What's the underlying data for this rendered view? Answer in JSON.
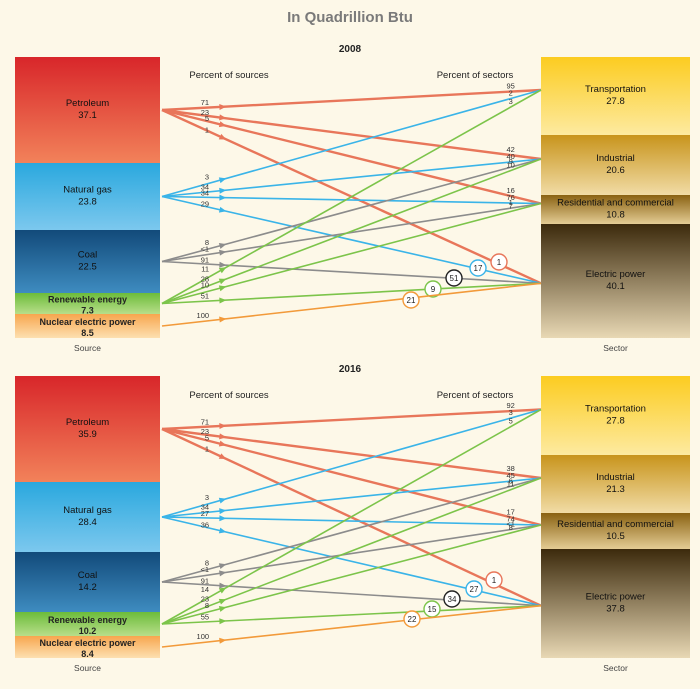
{
  "title": "In Quadrillion Btu",
  "labels": {
    "percent_of_sources": "Percent of sources",
    "percent_of_sectors": "Percent of sectors",
    "source_axis": "Source",
    "sector_axis": "Sector"
  },
  "colors": {
    "petroleum": "#e8765a",
    "natural_gas": "#3ab4e8",
    "coal": "#8c8c8c",
    "renewable": "#7cc44a",
    "nuclear": "#f29a3a"
  },
  "chart_data": [
    {
      "type": "sankey",
      "year": "2008",
      "sources": [
        {
          "key": "petroleum",
          "name": "Petroleum",
          "value": "37.1"
        },
        {
          "key": "natural_gas",
          "name": "Natural gas",
          "value": "23.8"
        },
        {
          "key": "coal",
          "name": "Coal",
          "value": "22.5"
        },
        {
          "key": "renewable",
          "name": "Renewable energy",
          "value": "7.3"
        },
        {
          "key": "nuclear",
          "name": "Nuclear electric power",
          "value": "8.5"
        }
      ],
      "sectors": [
        {
          "key": "transportation",
          "name": "Transportation",
          "value": "27.8"
        },
        {
          "key": "industrial",
          "name": "Industrial",
          "value": "20.6"
        },
        {
          "key": "residential",
          "name": "Residential and commercial",
          "value": "10.8"
        },
        {
          "key": "electric",
          "name": "Electric power",
          "value": "40.1"
        }
      ],
      "flows": [
        {
          "source": "petroleum",
          "target": "transportation",
          "pct_of_source": "71",
          "pct_of_sector": "95"
        },
        {
          "source": "petroleum",
          "target": "industrial",
          "pct_of_source": "23",
          "pct_of_sector": "42"
        },
        {
          "source": "petroleum",
          "target": "residential",
          "pct_of_source": "5",
          "pct_of_sector": "16"
        },
        {
          "source": "petroleum",
          "target": "electric",
          "pct_of_source": "1",
          "pct_of_sector": "1"
        },
        {
          "source": "natural_gas",
          "target": "transportation",
          "pct_of_source": "3",
          "pct_of_sector": "2"
        },
        {
          "source": "natural_gas",
          "target": "industrial",
          "pct_of_source": "34",
          "pct_of_sector": "40"
        },
        {
          "source": "natural_gas",
          "target": "residential",
          "pct_of_source": "34",
          "pct_of_sector": "76"
        },
        {
          "source": "natural_gas",
          "target": "electric",
          "pct_of_source": "29",
          "pct_of_sector": "17"
        },
        {
          "source": "coal",
          "target": "industrial",
          "pct_of_source": "8",
          "pct_of_sector": "9"
        },
        {
          "source": "coal",
          "target": "residential",
          "pct_of_source": "<1",
          "pct_of_sector": "1"
        },
        {
          "source": "coal",
          "target": "electric",
          "pct_of_source": "91",
          "pct_of_sector": "51"
        },
        {
          "source": "renewable",
          "target": "transportation",
          "pct_of_source": "11",
          "pct_of_sector": "3"
        },
        {
          "source": "renewable",
          "target": "industrial",
          "pct_of_source": "28",
          "pct_of_sector": "10"
        },
        {
          "source": "renewable",
          "target": "residential",
          "pct_of_source": "10",
          "pct_of_sector": "7"
        },
        {
          "source": "renewable",
          "target": "electric",
          "pct_of_source": "51",
          "pct_of_sector": "9"
        },
        {
          "source": "nuclear",
          "target": "electric",
          "pct_of_source": "100",
          "pct_of_sector": "21"
        }
      ]
    },
    {
      "type": "sankey",
      "year": "2016",
      "sources": [
        {
          "key": "petroleum",
          "name": "Petroleum",
          "value": "35.9"
        },
        {
          "key": "natural_gas",
          "name": "Natural gas",
          "value": "28.4"
        },
        {
          "key": "coal",
          "name": "Coal",
          "value": "14.2"
        },
        {
          "key": "renewable",
          "name": "Renewable energy",
          "value": "10.2"
        },
        {
          "key": "nuclear",
          "name": "Nuclear electric power",
          "value": "8.4"
        }
      ],
      "sectors": [
        {
          "key": "transportation",
          "name": "Transportation",
          "value": "27.8"
        },
        {
          "key": "industrial",
          "name": "Industrial",
          "value": "21.3"
        },
        {
          "key": "residential",
          "name": "Residential and commercial",
          "value": "10.5"
        },
        {
          "key": "electric",
          "name": "Electric power",
          "value": "37.8"
        }
      ],
      "flows": [
        {
          "source": "petroleum",
          "target": "transportation",
          "pct_of_source": "71",
          "pct_of_sector": "92"
        },
        {
          "source": "petroleum",
          "target": "industrial",
          "pct_of_source": "23",
          "pct_of_sector": "38"
        },
        {
          "source": "petroleum",
          "target": "residential",
          "pct_of_source": "5",
          "pct_of_sector": "17"
        },
        {
          "source": "petroleum",
          "target": "electric",
          "pct_of_source": "1",
          "pct_of_sector": "1"
        },
        {
          "source": "natural_gas",
          "target": "transportation",
          "pct_of_source": "3",
          "pct_of_sector": "3"
        },
        {
          "source": "natural_gas",
          "target": "industrial",
          "pct_of_source": "34",
          "pct_of_sector": "45"
        },
        {
          "source": "natural_gas",
          "target": "residential",
          "pct_of_source": "27",
          "pct_of_sector": "74"
        },
        {
          "source": "natural_gas",
          "target": "electric",
          "pct_of_source": "36",
          "pct_of_sector": "27"
        },
        {
          "source": "coal",
          "target": "industrial",
          "pct_of_source": "8",
          "pct_of_sector": "6"
        },
        {
          "source": "coal",
          "target": "residential",
          "pct_of_source": "<1",
          "pct_of_sector": "<1"
        },
        {
          "source": "coal",
          "target": "electric",
          "pct_of_source": "91",
          "pct_of_sector": "34"
        },
        {
          "source": "renewable",
          "target": "transportation",
          "pct_of_source": "14",
          "pct_of_sector": "5"
        },
        {
          "source": "renewable",
          "target": "industrial",
          "pct_of_source": "23",
          "pct_of_sector": "11"
        },
        {
          "source": "renewable",
          "target": "residential",
          "pct_of_source": "8",
          "pct_of_sector": "8"
        },
        {
          "source": "renewable",
          "target": "electric",
          "pct_of_source": "55",
          "pct_of_sector": "15"
        },
        {
          "source": "nuclear",
          "target": "electric",
          "pct_of_source": "100",
          "pct_of_sector": "22"
        }
      ]
    }
  ]
}
